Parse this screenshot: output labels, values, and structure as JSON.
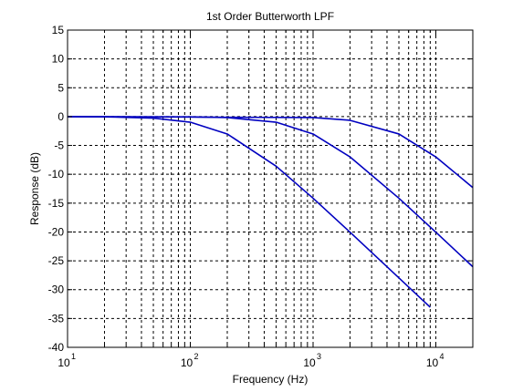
{
  "chart_data": {
    "type": "line",
    "title": "1st Order Butterworth LPF",
    "xlabel": "Frequency (Hz)",
    "ylabel": "Response (dB)",
    "x_scale": "log",
    "xlim": [
      10,
      20000
    ],
    "ylim": [
      -40,
      15
    ],
    "grid": true,
    "x_ticks": [
      {
        "value": 10,
        "base": "10",
        "exp": "1"
      },
      {
        "value": 100,
        "base": "10",
        "exp": "2"
      },
      {
        "value": 1000,
        "base": "10",
        "exp": "3"
      },
      {
        "value": 10000,
        "base": "10",
        "exp": "4"
      }
    ],
    "y_ticks": [
      15,
      10,
      5,
      0,
      -5,
      -10,
      -15,
      -20,
      -25,
      -30,
      -35,
      -40
    ],
    "line_color": "#0000c0",
    "series": [
      {
        "cutoff_hz": 200,
        "x": [
          10,
          20,
          50,
          100,
          200,
          500,
          1000,
          2000,
          5000,
          9000
        ],
        "y": [
          -0.01,
          -0.04,
          -0.26,
          -0.97,
          -3.01,
          -8.6,
          -14.15,
          -20.04,
          -27.96,
          -33.06
        ]
      },
      {
        "cutoff_hz": 1000,
        "x": [
          10,
          100,
          200,
          500,
          1000,
          2000,
          5000,
          10000,
          20000
        ],
        "y": [
          0.0,
          -0.04,
          -0.17,
          -0.97,
          -3.01,
          -6.99,
          -14.15,
          -20.04,
          -26.03
        ]
      },
      {
        "cutoff_hz": 5000,
        "x": [
          10,
          1000,
          2000,
          5000,
          10000,
          20000
        ],
        "y": [
          0.0,
          -0.17,
          -0.64,
          -3.01,
          -6.99,
          -12.3
        ]
      }
    ]
  }
}
